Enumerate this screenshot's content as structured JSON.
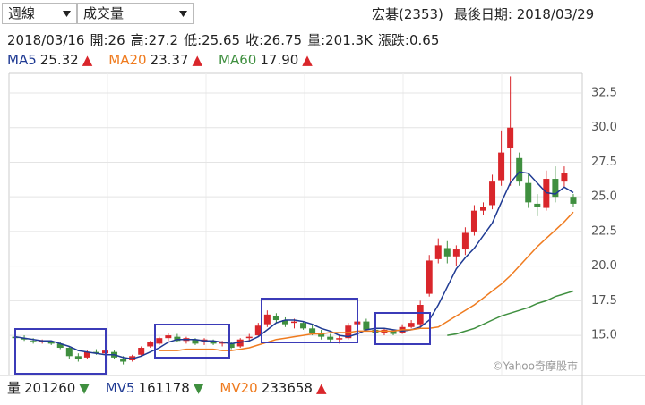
{
  "toolbar": {
    "period": "週線",
    "indicator": "成交量",
    "stock": "宏碁(2353)",
    "last_date": "最後日期: 2018/03/29"
  },
  "quote": {
    "date": "2018/03/16",
    "items": [
      "開:26",
      "高:27.2",
      "低:25.65",
      "收:26.75",
      "量:201.3K",
      "漲跌:0.65"
    ]
  },
  "chart_data": {
    "type": "candlestick",
    "up_color": "#d9262b",
    "down_color": "#3f8f3f",
    "grid": true,
    "ylim": [
      12.1,
      33.92
    ],
    "yticks": [
      {
        "value": 15,
        "label": "15.0"
      },
      17.5,
      {
        "value": 20,
        "label": "20.0"
      },
      22.5,
      {
        "value": 25,
        "label": "25.0"
      },
      27.5,
      {
        "value": 30,
        "label": "30.0"
      },
      32.5
    ],
    "open": [
      14.9,
      14.8,
      14.6,
      14.5,
      14.5,
      14.4,
      14.1,
      13.5,
      13.4,
      13.8,
      13.7,
      13.8,
      13.3,
      13.2,
      13.6,
      14.2,
      14.4,
      14.8,
      14.9,
      14.6,
      14.7,
      14.5,
      14.6,
      14.4,
      14.4,
      14.2,
      14.8,
      15.0,
      15.8,
      16.4,
      16.1,
      15.9,
      15.9,
      15.5,
      15.2,
      14.9,
      14.7,
      14.8,
      15.8,
      16.0,
      15.4,
      15.2,
      15.3,
      15.2,
      15.6,
      15.8,
      18.0,
      20.5,
      21.3,
      20.7,
      21.2,
      22.5,
      24.0,
      24.4,
      26.2,
      28.5,
      27.8,
      26.0,
      24.5,
      24.2,
      26.3,
      26.1,
      25.0
    ],
    "high": [
      15.0,
      15.0,
      14.8,
      14.7,
      14.6,
      14.5,
      14.2,
      13.7,
      13.9,
      14.0,
      14.0,
      13.9,
      13.5,
      13.6,
      14.2,
      14.6,
      14.9,
      15.2,
      15.1,
      14.9,
      14.8,
      14.8,
      14.7,
      14.6,
      14.5,
      14.8,
      15.1,
      15.9,
      16.8,
      16.6,
      16.3,
      16.2,
      16.0,
      15.8,
      15.4,
      15.1,
      15.0,
      15.9,
      16.3,
      16.2,
      15.6,
      15.5,
      15.4,
      15.8,
      16.1,
      17.5,
      20.8,
      22.0,
      21.8,
      21.5,
      22.8,
      24.4,
      24.6,
      26.6,
      29.8,
      33.7,
      28.2,
      26.7,
      25.2,
      26.9,
      27.2,
      27.2,
      25.2
    ],
    "low": [
      14.7,
      14.6,
      14.4,
      14.4,
      14.3,
      14.0,
      13.3,
      13.1,
      13.3,
      13.6,
      13.6,
      13.3,
      12.9,
      13.1,
      13.5,
      14.1,
      14.3,
      14.6,
      14.5,
      14.4,
      14.3,
      14.3,
      14.3,
      14.2,
      14.0,
      14.1,
      14.6,
      14.9,
      15.6,
      15.9,
      15.6,
      15.5,
      15.4,
      15.0,
      14.7,
      14.5,
      14.4,
      14.7,
      15.7,
      15.3,
      15.0,
      15.0,
      15.0,
      15.1,
      15.5,
      15.6,
      17.8,
      20.2,
      20.2,
      20.0,
      20.8,
      22.2,
      23.7,
      24.1,
      25.8,
      25.8,
      25.8,
      24.2,
      23.6,
      24.0,
      24.6,
      25.65,
      24.3
    ],
    "close": [
      14.8,
      14.7,
      14.5,
      14.6,
      14.4,
      14.1,
      13.5,
      13.3,
      13.8,
      13.7,
      13.9,
      13.4,
      13.1,
      13.5,
      14.1,
      14.5,
      14.8,
      15.0,
      14.6,
      14.8,
      14.4,
      14.7,
      14.4,
      14.5,
      14.1,
      14.7,
      14.9,
      15.7,
      16.5,
      16.1,
      15.8,
      16.0,
      15.5,
      15.2,
      14.9,
      14.7,
      14.8,
      15.7,
      16.0,
      15.4,
      15.2,
      15.4,
      15.1,
      15.6,
      15.9,
      17.2,
      20.4,
      21.5,
      20.7,
      21.2,
      22.4,
      24.0,
      24.3,
      26.1,
      28.2,
      30.0,
      26.1,
      24.6,
      24.3,
      26.3,
      25.0,
      26.75,
      24.5
    ],
    "series": [
      {
        "name": "MA5",
        "value_label": "25.32",
        "arrow": "▲",
        "color": "#1f3a93",
        "values": [
          14.9,
          14.8,
          14.7,
          14.6,
          14.6,
          14.4,
          14.2,
          13.9,
          13.8,
          13.7,
          13.6,
          13.6,
          13.4,
          13.3,
          13.5,
          13.8,
          14.1,
          14.5,
          14.7,
          14.7,
          14.7,
          14.6,
          14.6,
          14.5,
          14.4,
          14.5,
          14.6,
          14.9,
          15.4,
          15.9,
          16.1,
          16.1,
          16.0,
          15.8,
          15.5,
          15.3,
          15.0,
          14.9,
          15.1,
          15.4,
          15.5,
          15.5,
          15.4,
          15.3,
          15.4,
          15.6,
          16.1,
          17.2,
          18.5,
          19.8,
          20.6,
          21.3,
          22.2,
          23.1,
          24.6,
          26.0,
          26.8,
          26.7,
          26.0,
          25.3,
          25.2,
          25.7,
          25.3
        ]
      },
      {
        "name": "MA20",
        "value_label": "23.37",
        "arrow": "▲",
        "color": "#ef7b1f",
        "values": [
          null,
          null,
          null,
          null,
          null,
          null,
          null,
          null,
          null,
          null,
          null,
          null,
          null,
          null,
          null,
          null,
          13.9,
          13.9,
          13.9,
          14.0,
          14.0,
          14.0,
          14.0,
          13.9,
          13.9,
          14.0,
          14.1,
          14.3,
          14.5,
          14.7,
          14.8,
          14.9,
          15.0,
          15.1,
          15.1,
          15.2,
          15.2,
          15.2,
          15.3,
          15.3,
          15.3,
          15.3,
          15.3,
          15.4,
          15.4,
          15.5,
          15.5,
          15.6,
          16.0,
          16.4,
          16.8,
          17.2,
          17.7,
          18.2,
          18.7,
          19.3,
          20.0,
          20.7,
          21.4,
          22.0,
          22.6,
          23.2,
          23.9
        ]
      },
      {
        "name": "MA60",
        "value_label": "17.90",
        "arrow": "▲",
        "color": "#3f8f3f",
        "values": [
          null,
          null,
          null,
          null,
          null,
          null,
          null,
          null,
          null,
          null,
          null,
          null,
          null,
          null,
          null,
          null,
          null,
          null,
          null,
          null,
          null,
          null,
          null,
          null,
          null,
          null,
          null,
          null,
          null,
          null,
          null,
          null,
          null,
          null,
          null,
          null,
          null,
          null,
          null,
          null,
          null,
          null,
          null,
          null,
          null,
          null,
          null,
          null,
          15.0,
          15.1,
          15.3,
          15.5,
          15.8,
          16.1,
          16.4,
          16.6,
          16.8,
          17.0,
          17.3,
          17.5,
          17.8,
          18.0,
          18.2
        ]
      }
    ],
    "watermark": "©Yahoo奇摩股市"
  },
  "volume_legend": [
    {
      "name": "量",
      "value": "201260",
      "arrow": "▼",
      "color": "#222222"
    },
    {
      "name": "MV5",
      "value": "161178",
      "arrow": "▼",
      "color": "#1f3a93"
    },
    {
      "name": "MV20",
      "value": "233658",
      "arrow": "▲",
      "color": "#ef7b1f"
    }
  ]
}
